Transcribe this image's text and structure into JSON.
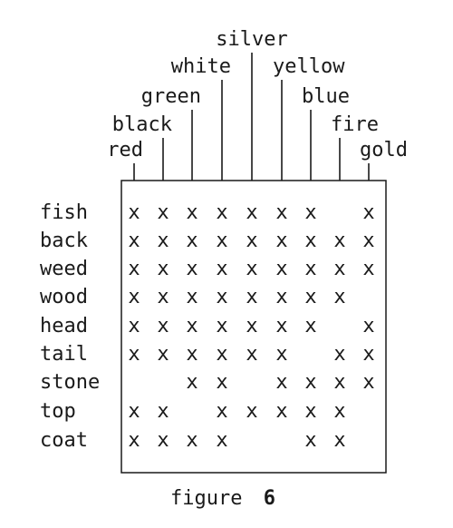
{
  "columns": [
    "red",
    "black",
    "green",
    "white",
    "silver",
    "yellow",
    "blue",
    "fire",
    "gold"
  ],
  "rows": [
    {
      "label": "fish",
      "cells": [
        "x",
        "x",
        "x",
        "x",
        "x",
        "x",
        "x",
        "",
        "x"
      ]
    },
    {
      "label": "back",
      "cells": [
        "x",
        "x",
        "x",
        "x",
        "x",
        "x",
        "x",
        "x",
        "x"
      ]
    },
    {
      "label": "weed",
      "cells": [
        "x",
        "x",
        "x",
        "x",
        "x",
        "x",
        "x",
        "x",
        "x"
      ]
    },
    {
      "label": "wood",
      "cells": [
        "x",
        "x",
        "x",
        "x",
        "x",
        "x",
        "x",
        "x",
        ""
      ]
    },
    {
      "label": "head",
      "cells": [
        "x",
        "x",
        "x",
        "x",
        "x",
        "x",
        "x",
        "",
        "x"
      ]
    },
    {
      "label": "tail",
      "cells": [
        "x",
        "x",
        "x",
        "x",
        "x",
        "x",
        "",
        "x",
        "x"
      ]
    },
    {
      "label": "stone",
      "cells": [
        "",
        "",
        "x",
        "x",
        "",
        "x",
        "x",
        "x",
        "x"
      ]
    },
    {
      "label": "top",
      "cells": [
        "x",
        "x",
        "",
        "x",
        "x",
        "x",
        "x",
        "x",
        ""
      ]
    },
    {
      "label": "coat",
      "cells": [
        "x",
        "x",
        "x",
        "x",
        "",
        "",
        "x",
        "x",
        ""
      ]
    }
  ],
  "caption": {
    "word": "figure",
    "number": "6"
  },
  "colors": {
    "ink": "#1a1a1a",
    "background": "#ffffff"
  }
}
